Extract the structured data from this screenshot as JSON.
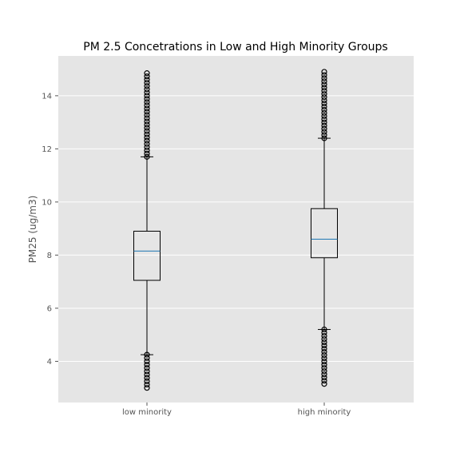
{
  "chart_data": {
    "type": "box",
    "title": "PM 2.5 Concetrations in Low and High Minority Groups",
    "xlabel": "",
    "ylabel": "PM25 (ug/m3)",
    "ylim": [
      2.45,
      15.5
    ],
    "yticks": [
      4,
      6,
      8,
      10,
      12,
      14
    ],
    "grid": true,
    "categories": [
      "low minority",
      "high minority"
    ],
    "boxes": [
      {
        "name": "low minority",
        "whisker_low": 4.25,
        "q1": 7.05,
        "median": 8.15,
        "q3": 8.9,
        "whisker_high": 11.7,
        "outliers_low_range": [
          3.0,
          4.25
        ],
        "outliers_high_range": [
          11.7,
          14.85
        ]
      },
      {
        "name": "high minority",
        "whisker_low": 5.2,
        "q1": 7.9,
        "median": 8.6,
        "q3": 9.75,
        "whisker_high": 12.4,
        "outliers_low_range": [
          3.15,
          5.2
        ],
        "outliers_high_range": [
          12.4,
          14.9
        ]
      }
    ],
    "colors": {
      "plot_background": "#e5e5e5",
      "grid": "#ffffff",
      "median": "#1f77b4",
      "box": "#000000",
      "tick_text": "#555555"
    }
  }
}
